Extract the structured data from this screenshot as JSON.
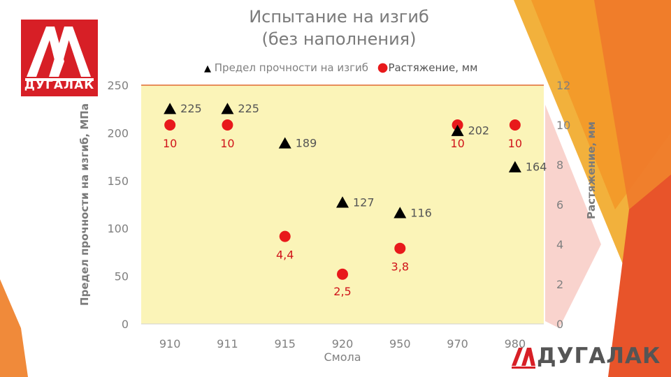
{
  "title_line1": "Испытание на изгиб",
  "title_line2": "(без наполнения)",
  "logo_text": "ДУГАЛАК",
  "colors": {
    "plot_bg": "#fbf4b8",
    "triangle": "#000000",
    "circle": "#e8191b",
    "circle_label": "#d0141a",
    "logo_red": "#d71f26",
    "orange": "#f0a030"
  },
  "chart_data": {
    "type": "scatter",
    "xlabel": "Смола",
    "ylabel": "Предел прочности на изгиб, МПа",
    "y2label": "Растяжение, мм",
    "categories": [
      "910",
      "911",
      "915",
      "920",
      "950",
      "970",
      "980"
    ],
    "ylim": [
      0,
      250
    ],
    "y2lim": [
      0,
      12
    ],
    "yticks": [
      "0",
      "50",
      "100",
      "150",
      "200",
      "250"
    ],
    "y2ticks": [
      "0",
      "2",
      "4",
      "6",
      "8",
      "10",
      "12"
    ],
    "legend_position": "top",
    "series": [
      {
        "name": "Предел прочности на изгиб",
        "axis": "left",
        "marker": "triangle",
        "values": [
          225,
          225,
          189,
          127,
          116,
          202,
          164
        ],
        "labels": [
          "225",
          "225",
          "189",
          "127",
          "116",
          "202",
          "164"
        ]
      },
      {
        "name": "Растяжение, мм",
        "axis": "right",
        "marker": "circle",
        "values": [
          10,
          10,
          4.4,
          2.5,
          3.8,
          10,
          10
        ],
        "labels": [
          "10",
          "10",
          "4,4",
          "2,5",
          "3,8",
          "10",
          "10"
        ]
      }
    ]
  }
}
